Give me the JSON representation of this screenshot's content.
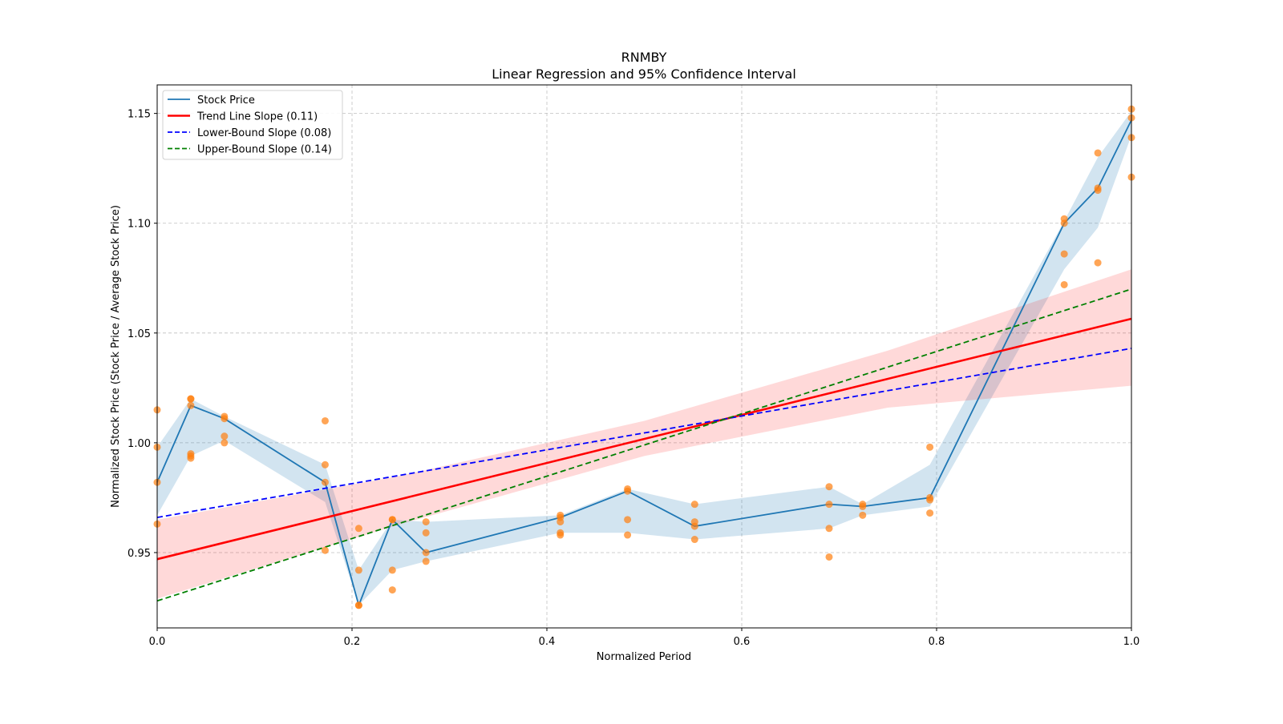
{
  "chart_data": {
    "type": "line",
    "title": "RNMBY",
    "subtitle": "Linear Regression and 95% Confidence Interval",
    "xlabel": "Normalized Period",
    "ylabel": "Normalized Stock Price (Stock Price / Average Stock Price)",
    "xlim": [
      0,
      1
    ],
    "ylim": [
      0.9157,
      1.163
    ],
    "xticks": [
      0,
      0.2,
      0.4,
      0.6,
      0.8,
      1.0
    ],
    "xtick_labels": [
      "0.0",
      "0.2",
      "0.4",
      "0.6",
      "0.8",
      "1.0"
    ],
    "yticks": [
      0.95,
      1.0,
      1.05,
      1.1,
      1.15
    ],
    "ytick_labels": [
      "0.95",
      "1.00",
      "1.05",
      "1.10",
      "1.15"
    ],
    "grid": true,
    "legend_position": "top-left",
    "legend": [
      {
        "label": "Stock Price",
        "color": "#1f77b4",
        "style": "solid"
      },
      {
        "label": "Trend Line Slope (0.11)",
        "color": "#ff0000",
        "style": "solid"
      },
      {
        "label": "Lower-Bound Slope (0.08)",
        "color": "#0000ff",
        "style": "dashed"
      },
      {
        "label": "Upper-Bound Slope (0.14)",
        "color": "#008000",
        "style": "dashed"
      }
    ],
    "stock_price": {
      "x": [
        0,
        0.0345,
        0.069,
        0.1724,
        0.2069,
        0.2414,
        0.2759,
        0.4138,
        0.4828,
        0.5517,
        0.6897,
        0.7241,
        0.7931,
        0.931,
        0.9655,
        1.0
      ],
      "y": [
        0.982,
        1.017,
        1.011,
        0.982,
        0.926,
        0.965,
        0.95,
        0.966,
        0.978,
        0.962,
        0.972,
        0.971,
        0.975,
        1.1,
        1.116,
        1.147
      ],
      "ci_lower": [
        0.967,
        0.994,
        1.001,
        0.973,
        0.926,
        0.942,
        0.946,
        0.959,
        0.959,
        0.956,
        0.961,
        0.967,
        0.971,
        1.079,
        1.098,
        1.14
      ],
      "ci_upper": [
        0.998,
        1.02,
        1.012,
        0.99,
        0.942,
        0.965,
        0.964,
        0.967,
        0.979,
        0.972,
        0.98,
        0.972,
        0.99,
        1.101,
        1.13,
        1.151
      ],
      "color": "#1f77b4"
    },
    "scatter": {
      "color": "#ff7f0e",
      "points": [
        [
          0,
          1.015
        ],
        [
          0,
          0.998
        ],
        [
          0,
          0.982
        ],
        [
          0,
          0.963
        ],
        [
          0.0345,
          1.02
        ],
        [
          0.0345,
          1.02
        ],
        [
          0.0345,
          1.017
        ],
        [
          0.0345,
          0.995
        ],
        [
          0.0345,
          0.994
        ],
        [
          0.0345,
          0.993
        ],
        [
          0.069,
          1.012
        ],
        [
          0.069,
          1.011
        ],
        [
          0.069,
          1.003
        ],
        [
          0.069,
          1.0
        ],
        [
          0.1724,
          1.01
        ],
        [
          0.1724,
          0.99
        ],
        [
          0.1724,
          0.982
        ],
        [
          0.1724,
          0.951
        ],
        [
          0.2069,
          0.961
        ],
        [
          0.2069,
          0.942
        ],
        [
          0.2069,
          0.926
        ],
        [
          0.2069,
          0.926
        ],
        [
          0.2414,
          0.965
        ],
        [
          0.2414,
          0.965
        ],
        [
          0.2414,
          0.942
        ],
        [
          0.2414,
          0.933
        ],
        [
          0.2759,
          0.964
        ],
        [
          0.2759,
          0.959
        ],
        [
          0.2759,
          0.95
        ],
        [
          0.2759,
          0.946
        ],
        [
          0.4138,
          0.967
        ],
        [
          0.4138,
          0.966
        ],
        [
          0.4138,
          0.964
        ],
        [
          0.4138,
          0.959
        ],
        [
          0.4138,
          0.958
        ],
        [
          0.4828,
          0.979
        ],
        [
          0.4828,
          0.978
        ],
        [
          0.4828,
          0.965
        ],
        [
          0.4828,
          0.958
        ],
        [
          0.5517,
          0.972
        ],
        [
          0.5517,
          0.964
        ],
        [
          0.5517,
          0.962
        ],
        [
          0.5517,
          0.956
        ],
        [
          0.6897,
          0.98
        ],
        [
          0.6897,
          0.972
        ],
        [
          0.6897,
          0.961
        ],
        [
          0.6897,
          0.948
        ],
        [
          0.7241,
          0.972
        ],
        [
          0.7241,
          0.971
        ],
        [
          0.7241,
          0.967
        ],
        [
          0.7931,
          0.998
        ],
        [
          0.7931,
          0.975
        ],
        [
          0.7931,
          0.974
        ],
        [
          0.7931,
          0.968
        ],
        [
          0.931,
          1.102
        ],
        [
          0.931,
          1.1
        ],
        [
          0.931,
          1.086
        ],
        [
          0.931,
          1.072
        ],
        [
          0.9655,
          1.132
        ],
        [
          0.9655,
          1.116
        ],
        [
          0.9655,
          1.115
        ],
        [
          0.9655,
          1.082
        ],
        [
          1.0,
          1.152
        ],
        [
          1.0,
          1.148
        ],
        [
          1.0,
          1.139
        ],
        [
          1.0,
          1.121
        ]
      ]
    },
    "trend_line": {
      "x": [
        0,
        1
      ],
      "y": [
        0.947,
        1.0565
      ],
      "color": "#ff0000"
    },
    "trend_ci": {
      "x": [
        0,
        0.25,
        0.5,
        0.75,
        1.0
      ],
      "lower": [
        0.929,
        0.963,
        0.994,
        1.016,
        1.026
      ],
      "upper": [
        0.965,
        0.985,
        1.01,
        1.042,
        1.079
      ],
      "color": "#ff0000"
    },
    "lower_bound_line": {
      "x": [
        0,
        1
      ],
      "y": [
        0.966,
        1.043
      ],
      "color": "#0000ff"
    },
    "upper_bound_line": {
      "x": [
        0,
        1
      ],
      "y": [
        0.928,
        1.07
      ],
      "color": "#008000"
    }
  }
}
